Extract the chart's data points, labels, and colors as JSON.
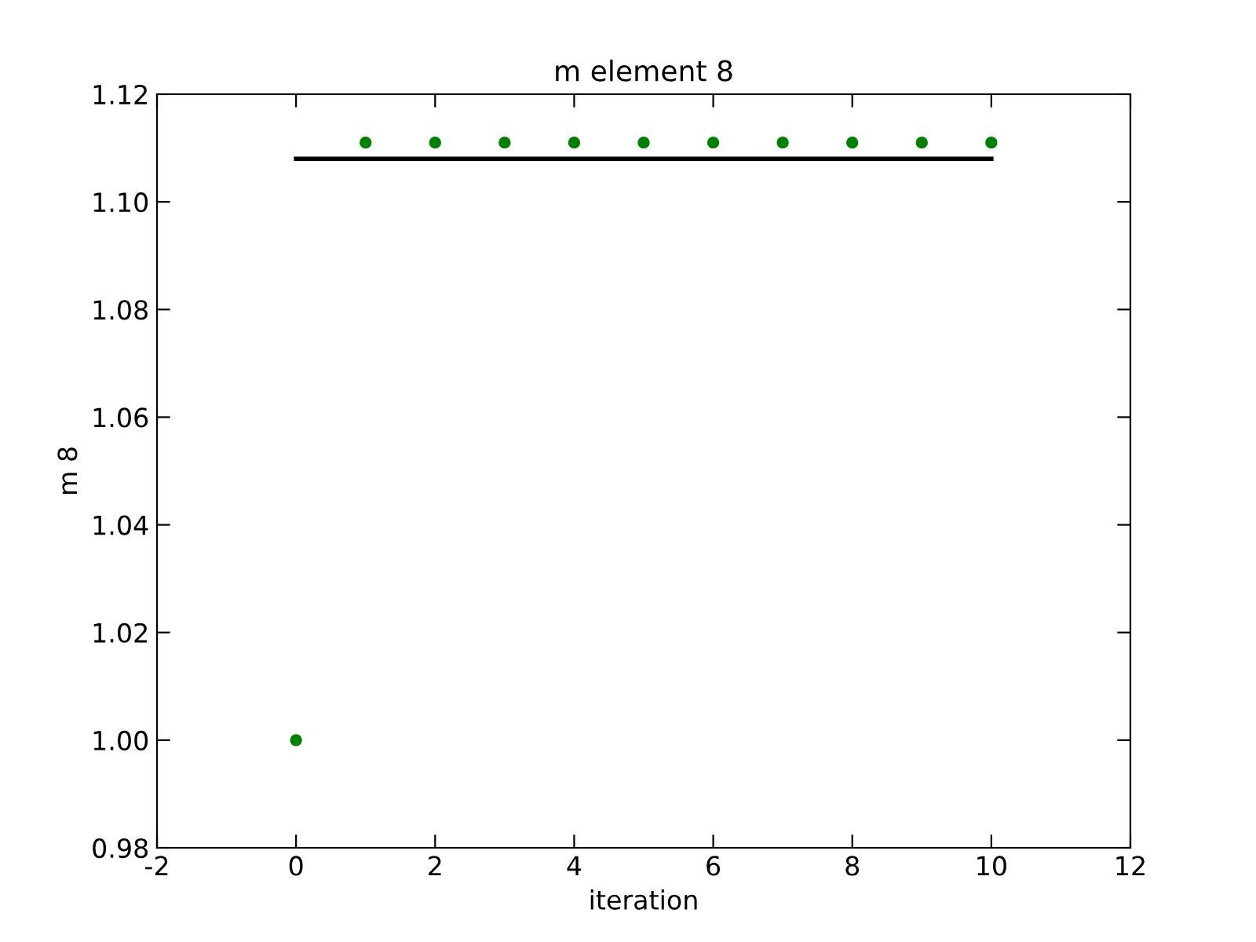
{
  "chart_data": {
    "type": "scatter",
    "title": "m element 8",
    "xlabel": "iteration",
    "ylabel": "m 8",
    "series": [
      {
        "color": "#008000",
        "marker": "circle",
        "x": [
          0,
          1,
          2,
          3,
          4,
          5,
          6,
          7,
          8,
          9,
          10
        ],
        "values": [
          1.0,
          1.111,
          1.111,
          1.111,
          1.111,
          1.111,
          1.111,
          1.111,
          1.111,
          1.111,
          1.111
        ]
      },
      {
        "type": "line",
        "color": "#000000",
        "x": [
          0,
          10
        ],
        "values": [
          1.108,
          1.108
        ]
      }
    ],
    "xlim": [
      -2,
      12
    ],
    "xticks": [
      -2,
      0,
      2,
      4,
      6,
      8,
      10,
      12
    ],
    "ylim": [
      0.98,
      1.12
    ],
    "yticks": [
      {
        "value": 0.98,
        "label": "0.98"
      },
      {
        "value": 1.0,
        "label": "1.00"
      },
      {
        "value": 1.02,
        "label": "1.02"
      },
      {
        "value": 1.04,
        "label": "1.04"
      },
      {
        "value": 1.06,
        "label": "1.06"
      },
      {
        "value": 1.08,
        "label": "1.08"
      },
      {
        "value": 1.1,
        "label": "1.10"
      },
      {
        "value": 1.12,
        "label": "1.12"
      }
    ],
    "grid": false,
    "legend": false
  }
}
